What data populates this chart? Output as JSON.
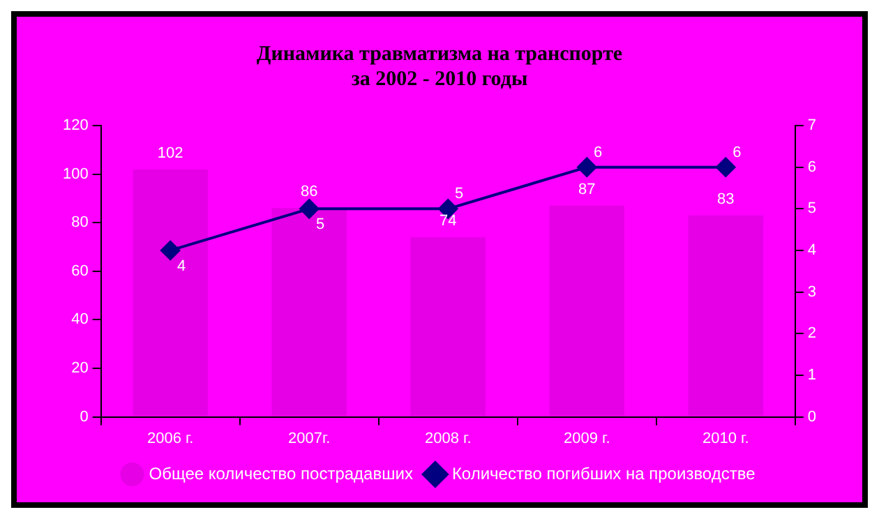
{
  "chart_data": {
    "type": "bar",
    "title": [
      "Динамика травматизма на транспорте",
      "за 2002 - 2010 годы"
    ],
    "categories": [
      "2006 г.",
      "2007г.",
      "2008 г.",
      "2009 г.",
      "2010 г."
    ],
    "series": [
      {
        "name": "Общее количество пострадавших",
        "color": "#e600e6",
        "values": [
          102,
          86,
          74,
          87,
          83
        ]
      },
      {
        "name": "Количество погибших на производстве",
        "type": "line",
        "axis": "y2",
        "color": "#000080",
        "values": [
          4,
          5,
          5,
          6,
          6
        ]
      }
    ],
    "ylim": [
      0,
      120
    ],
    "yticks": [
      0,
      20,
      40,
      60,
      80,
      100,
      120
    ],
    "y2lim": [
      0,
      7
    ],
    "y2ticks": [
      0,
      1,
      2,
      3,
      4,
      5,
      6,
      7
    ],
    "grid": false,
    "legend": "bottom",
    "marker": "diamond",
    "line_style": "solid",
    "data_labels": true
  }
}
